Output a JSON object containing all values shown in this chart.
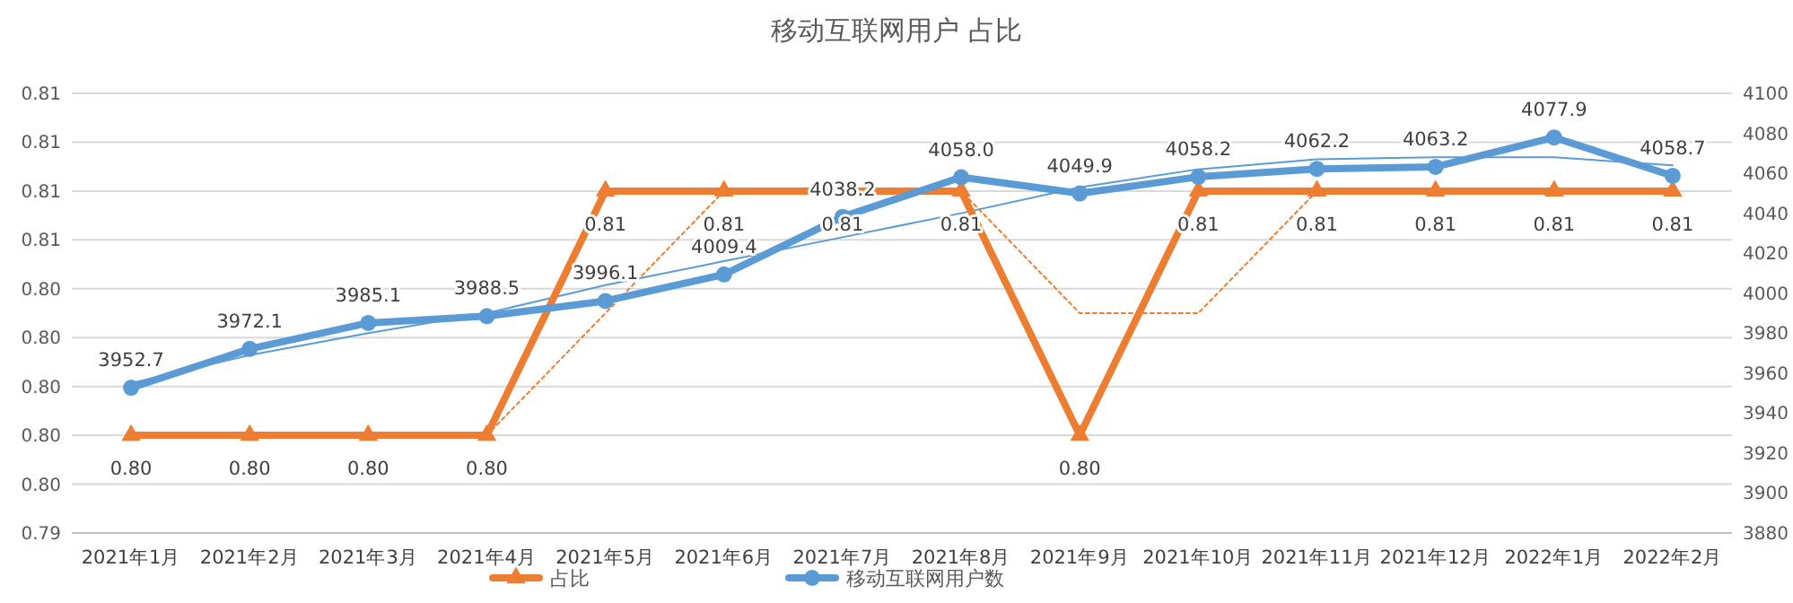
{
  "chart_data": {
    "type": "line",
    "title": "移动互联网用户 占比",
    "categories": [
      "2021年1月",
      "2021年2月",
      "2021年3月",
      "2021年4月",
      "2021年5月",
      "2021年6月",
      "2021年7月",
      "2021年8月",
      "2021年9月",
      "2021年10月",
      "2021年11月",
      "2021年12月",
      "2022年1月",
      "2022年2月"
    ],
    "series": [
      {
        "name": "占比",
        "color": "#ed7d31",
        "marker": "triangle",
        "values": [
          0.798,
          0.798,
          0.798,
          0.798,
          0.808,
          0.808,
          0.808,
          0.808,
          0.798,
          0.808,
          0.808,
          0.808,
          0.808,
          0.808
        ],
        "value_labels": [
          "0.80",
          "0.80",
          "0.80",
          "0.80",
          "0.81",
          "0.81",
          "0.81",
          "0.81",
          "0.80",
          "0.81",
          "0.81",
          "0.81",
          "0.81",
          "0.81"
        ]
      },
      {
        "name": "移动互联网用户数",
        "color": "#5b9bd5",
        "marker": "circle",
        "axis": "y2",
        "value_labels": [
          "3952.7",
          "3972.1",
          "3985.1",
          "3988.5",
          "3996.1",
          "4009.4",
          "4038.2",
          "4058.0",
          "4049.9",
          "4058.2",
          "4062.2",
          "4063.2",
          "4077.9",
          "4058.7"
        ],
        "values": [
          3952.7,
          3972.1,
          3985.1,
          3988.5,
          3996.1,
          4009.4,
          4038.2,
          4058.0,
          4049.9,
          4058.2,
          4062.2,
          4063.2,
          4077.9,
          4058.7
        ]
      },
      {
        "type": "line",
        "color": "#ed7d31",
        "line_style": "dotted",
        "marker": "none",
        "values": [
          null,
          null,
          null,
          0.798,
          0.803,
          0.808,
          0.808,
          0.808,
          0.803,
          0.803,
          0.808,
          0.808,
          0.808,
          0.808
        ]
      },
      {
        "type": "line",
        "color": "#5b9bd5",
        "line_style": "solid",
        "marker": "none",
        "axis": "y2",
        "values": [
          3955,
          3969,
          3980,
          3990,
          4004,
          4016,
          4028,
          4040,
          4053,
          4062,
          4067,
          4068,
          4068,
          4064
        ]
      }
    ],
    "ylim": [
      0.794,
      0.812
    ],
    "yticks": [
      {
        "value": 0.794,
        "label": "0.79"
      },
      {
        "value": 0.796,
        "label": "0.80"
      },
      {
        "value": 0.798,
        "label": "0.80"
      },
      {
        "value": 0.8,
        "label": "0.80"
      },
      {
        "value": 0.802,
        "label": "0.80"
      },
      {
        "value": 0.804,
        "label": "0.80"
      },
      {
        "value": 0.806,
        "label": "0.81"
      },
      {
        "value": 0.808,
        "label": "0.81"
      },
      {
        "value": 0.81,
        "label": "0.81"
      },
      {
        "value": 0.812,
        "label": "0.81"
      }
    ],
    "y2lim": [
      3880,
      4100
    ],
    "y2ticks": [
      3880,
      3900,
      3920,
      3940,
      3960,
      3980,
      4000,
      4020,
      4040,
      4060,
      4080,
      4100
    ],
    "grid": "y",
    "legend": "bottom"
  }
}
